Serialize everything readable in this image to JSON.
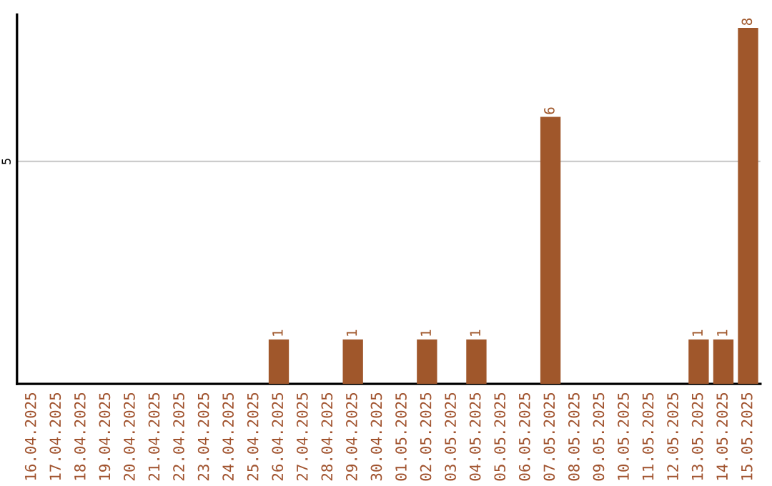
{
  "chart_data": {
    "type": "bar",
    "categories": [
      "16.04.2025",
      "17.04.2025",
      "18.04.2025",
      "19.04.2025",
      "20.04.2025",
      "21.04.2025",
      "22.04.2025",
      "23.04.2025",
      "24.04.2025",
      "25.04.2025",
      "26.04.2025",
      "27.04.2025",
      "28.04.2025",
      "29.04.2025",
      "30.04.2025",
      "01.05.2025",
      "02.05.2025",
      "03.05.2025",
      "04.05.2025",
      "05.05.2025",
      "06.05.2025",
      "07.05.2025",
      "08.05.2025",
      "09.05.2025",
      "10.05.2025",
      "11.05.2025",
      "12.05.2025",
      "13.05.2025",
      "14.05.2025",
      "15.05.2025"
    ],
    "values": [
      0,
      0,
      0,
      0,
      0,
      0,
      0,
      0,
      0,
      0,
      1,
      0,
      0,
      1,
      0,
      0,
      1,
      0,
      1,
      0,
      0,
      6,
      0,
      0,
      0,
      0,
      0,
      1,
      1,
      8
    ],
    "value_labels": [
      null,
      null,
      null,
      null,
      null,
      null,
      null,
      null,
      null,
      null,
      "1",
      null,
      null,
      "1",
      null,
      null,
      "1",
      null,
      "1",
      null,
      null,
      "6",
      null,
      null,
      null,
      null,
      null,
      "1",
      "1",
      "8"
    ],
    "color": "#a0572b",
    "ylim": [
      0,
      8.3
    ],
    "yticks": [
      5
    ],
    "grid": "y"
  }
}
